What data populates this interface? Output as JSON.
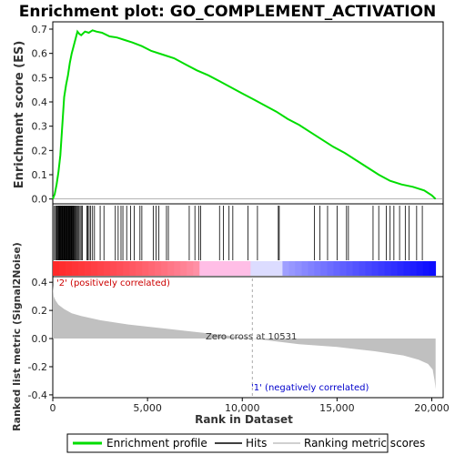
{
  "chart_data": {
    "type": "line",
    "title": "Enrichment plot: GO_COMPLEMENT_ACTIVATION",
    "top_panel": {
      "ylabel": "Enrichment score (ES)",
      "ylim": [
        -0.02,
        0.73
      ],
      "yticks": [
        0.0,
        0.1,
        0.2,
        0.3,
        0.4,
        0.5,
        0.6,
        0.7
      ],
      "series": [
        {
          "name": "Enrichment profile",
          "color": "#00dd00",
          "x": [
            0,
            100,
            200,
            300,
            400,
            500,
            600,
            700,
            800,
            900,
            1000,
            1100,
            1200,
            1300,
            1400,
            1500,
            1700,
            1900,
            2100,
            2300,
            2600,
            3000,
            3400,
            3800,
            4200,
            4700,
            5200,
            5800,
            6400,
            7000,
            7600,
            8200,
            8800,
            9400,
            10000,
            10600,
            11200,
            11800,
            12400,
            13000,
            13600,
            14200,
            14800,
            15400,
            16000,
            16600,
            17200,
            17800,
            18400,
            19000,
            19600,
            20000,
            20200
          ],
          "y": [
            0.0,
            0.02,
            0.06,
            0.11,
            0.18,
            0.3,
            0.42,
            0.47,
            0.51,
            0.56,
            0.6,
            0.63,
            0.66,
            0.69,
            0.68,
            0.675,
            0.69,
            0.685,
            0.695,
            0.69,
            0.685,
            0.67,
            0.665,
            0.655,
            0.645,
            0.63,
            0.61,
            0.595,
            0.58,
            0.555,
            0.53,
            0.51,
            0.485,
            0.46,
            0.435,
            0.41,
            0.385,
            0.36,
            0.33,
            0.305,
            0.275,
            0.245,
            0.215,
            0.19,
            0.16,
            0.13,
            0.1,
            0.075,
            0.06,
            0.05,
            0.035,
            0.015,
            0.0
          ]
        }
      ]
    },
    "hits": [
      80,
      150,
      190,
      240,
      280,
      310,
      340,
      370,
      400,
      430,
      460,
      490,
      520,
      550,
      580,
      610,
      640,
      670,
      700,
      730,
      760,
      790,
      820,
      850,
      880,
      910,
      940,
      970,
      1000,
      1030,
      1060,
      1100,
      1140,
      1180,
      1230,
      1280,
      1330,
      1380,
      1440,
      1500,
      1560,
      1800,
      1850,
      1920,
      2000,
      2100,
      2200,
      2500,
      2700,
      3300,
      3450,
      3600,
      3700,
      3900,
      4100,
      4300,
      4600,
      4700,
      5300,
      5450,
      5600,
      6000,
      6100,
      7200,
      7500,
      7700,
      7800,
      8800,
      9000,
      9300,
      9500,
      10300,
      10800,
      11900,
      11950,
      13800,
      14100,
      14500,
      15000,
      15500,
      15600,
      16900,
      17200,
      17600,
      17800,
      18000,
      18300,
      18600,
      18800,
      19200,
      19500
    ],
    "bottom_panel": {
      "ylabel": "Ranked list metric (Signal2Noise)",
      "xlabel": "Rank in Dataset",
      "ylim": [
        -0.42,
        0.44
      ],
      "yticks": [
        -0.4,
        -0.2,
        0.0,
        0.2,
        0.4
      ],
      "xticks": [
        0,
        5000,
        10000,
        15000,
        20000
      ],
      "xtick_labels": [
        "0",
        "5,000",
        "10,000",
        "15,000",
        "20,000"
      ],
      "xlim": [
        0,
        20600
      ],
      "metric_x": [
        0,
        50,
        150,
        300,
        600,
        1000,
        1500,
        2500,
        4000,
        6000,
        8000,
        10531,
        13000,
        15000,
        17000,
        18500,
        19300,
        19800,
        20050,
        20150,
        20200
      ],
      "metric_y": [
        0.38,
        0.3,
        0.27,
        0.24,
        0.21,
        0.18,
        0.16,
        0.13,
        0.1,
        0.07,
        0.04,
        0.0,
        -0.04,
        -0.06,
        -0.09,
        -0.12,
        -0.15,
        -0.18,
        -0.22,
        -0.3,
        -0.36
      ],
      "fill_color": "#c0c0c0"
    },
    "zero_cross": {
      "label": "Zero cross at 10531",
      "rank": 10531
    },
    "pos_label": "'2' (positively correlated)",
    "neg_label": "'1' (negatively correlated)",
    "pos_color": "#cc0000",
    "neg_color": "#0000cc",
    "n_ranks": 20200,
    "legend": [
      {
        "label": "Enrichment profile",
        "color": "#00dd00"
      },
      {
        "label": "Hits",
        "color": "#000000"
      },
      {
        "label": "Ranking metric scores",
        "color": "#c0c0c0"
      }
    ]
  }
}
